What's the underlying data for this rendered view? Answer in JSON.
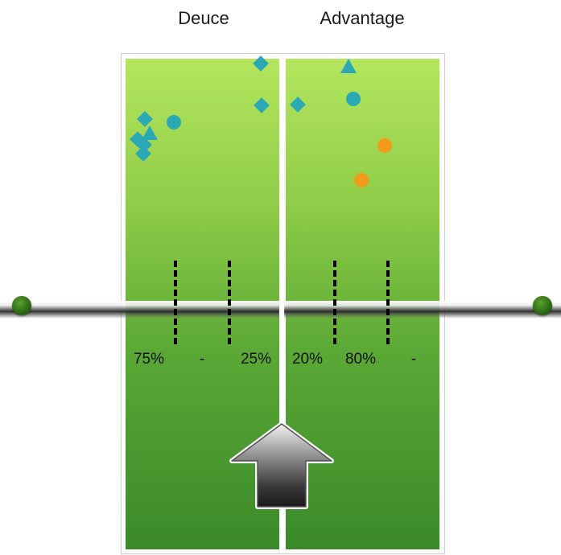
{
  "sides": [
    {
      "label": "Deuce",
      "percents": [
        "75%",
        "-",
        "25%"
      ]
    },
    {
      "label": "Advantage",
      "percents": [
        "20%",
        "80%",
        "-"
      ]
    }
  ],
  "colors": {
    "teal": "#2aa9b5",
    "orange": "#f29a1c",
    "court_light": "#b4e65e",
    "court_dark": "#3a8a2a",
    "post": "#2f6d15",
    "arrow": "#3a3a3a"
  },
  "icons": {
    "direction_arrow": "up-arrow-icon",
    "net_post": "net-post-icon"
  }
}
